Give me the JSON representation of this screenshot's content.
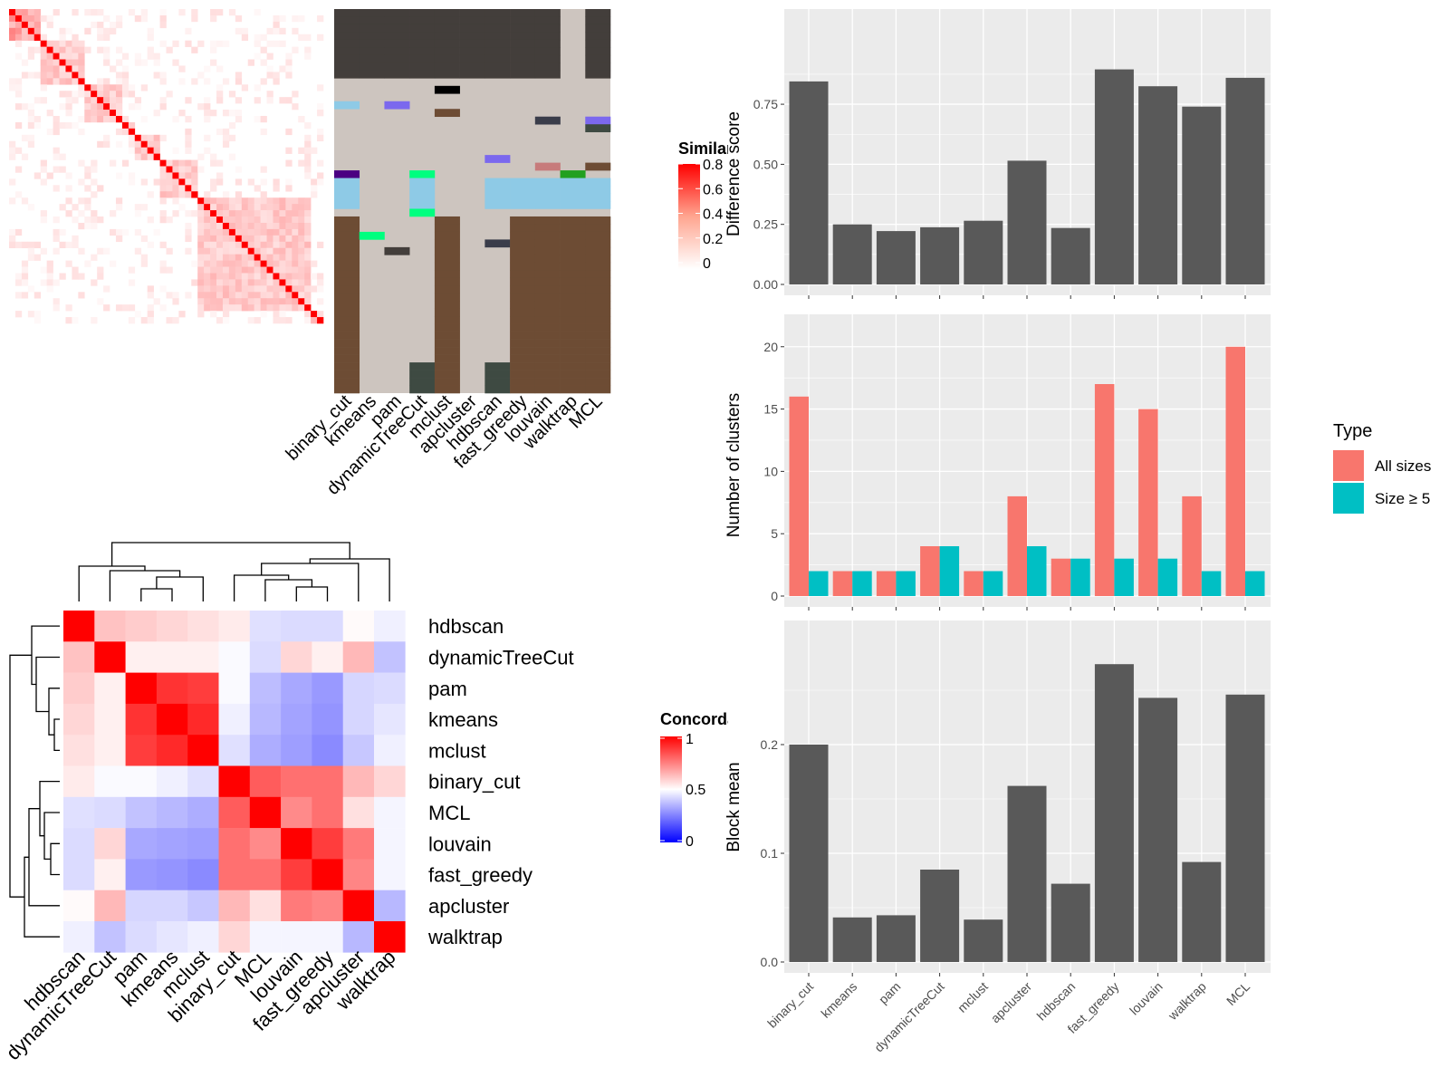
{
  "chart_data": [
    {
      "type": "heatmap",
      "panel": "similarity-heatmap",
      "legend_title": "Similarity",
      "legend_ticks": [
        "0",
        "0.2",
        "0.4",
        "0.6",
        "0.8"
      ],
      "column_labels": [
        "binary_cut",
        "kmeans",
        "pam",
        "dynamicTreeCut",
        "mclust",
        "apcluster",
        "hdbscan",
        "fast_greedy",
        "louvain",
        "walktrap",
        "MCL"
      ]
    },
    {
      "type": "heatmap",
      "panel": "concordance-heatmap",
      "legend_title": "Concordance",
      "legend_ticks": [
        "0",
        "0.5",
        "1"
      ],
      "row_labels": [
        "hdbscan",
        "dynamicTreeCut",
        "pam",
        "kmeans",
        "mclust",
        "binary_cut",
        "MCL",
        "louvain",
        "fast_greedy",
        "apcluster",
        "walktrap"
      ],
      "column_labels": [
        "hdbscan",
        "dynamicTreeCut",
        "pam",
        "kmeans",
        "mclust",
        "binary_cut",
        "MCL",
        "louvain",
        "fast_greedy",
        "apcluster",
        "walktrap"
      ],
      "values": [
        [
          1.0,
          0.62,
          0.6,
          0.58,
          0.56,
          0.54,
          0.44,
          0.43,
          0.43,
          0.51,
          0.47
        ],
        [
          0.62,
          1.0,
          0.53,
          0.53,
          0.53,
          0.49,
          0.43,
          0.58,
          0.53,
          0.64,
          0.38
        ],
        [
          0.6,
          0.53,
          1.0,
          0.9,
          0.88,
          0.49,
          0.37,
          0.33,
          0.3,
          0.42,
          0.43
        ],
        [
          0.58,
          0.53,
          0.9,
          1.0,
          0.92,
          0.47,
          0.36,
          0.32,
          0.29,
          0.42,
          0.45
        ],
        [
          0.56,
          0.53,
          0.88,
          0.92,
          1.0,
          0.44,
          0.34,
          0.31,
          0.27,
          0.39,
          0.47
        ],
        [
          0.54,
          0.49,
          0.49,
          0.47,
          0.44,
          1.0,
          0.82,
          0.78,
          0.78,
          0.64,
          0.58
        ],
        [
          0.44,
          0.43,
          0.38,
          0.36,
          0.34,
          0.82,
          1.0,
          0.73,
          0.78,
          0.56,
          0.48
        ],
        [
          0.43,
          0.58,
          0.33,
          0.32,
          0.31,
          0.78,
          0.73,
          1.0,
          0.88,
          0.76,
          0.48
        ],
        [
          0.43,
          0.53,
          0.3,
          0.29,
          0.27,
          0.78,
          0.78,
          0.88,
          1.0,
          0.74,
          0.48
        ],
        [
          0.51,
          0.64,
          0.42,
          0.42,
          0.39,
          0.64,
          0.56,
          0.76,
          0.74,
          1.0,
          0.36
        ],
        [
          0.47,
          0.38,
          0.43,
          0.45,
          0.47,
          0.58,
          0.48,
          0.48,
          0.48,
          0.36,
          1.0
        ]
      ]
    },
    {
      "type": "bar",
      "panel": "difference-score",
      "categories": [
        "binary_cut",
        "kmeans",
        "pam",
        "dynamicTreeCut",
        "mclust",
        "apcluster",
        "hdbscan",
        "fast_greedy",
        "louvain",
        "walktrap",
        "MCL"
      ],
      "values": [
        0.845,
        0.25,
        0.222,
        0.238,
        0.265,
        0.515,
        0.235,
        0.895,
        0.825,
        0.74,
        0.86
      ],
      "ylabel": "Difference score",
      "yticks": [
        "0.00",
        "0.25",
        "0.50",
        "0.75"
      ],
      "ylim": [
        0,
        0.92
      ],
      "grid": true
    },
    {
      "type": "bar",
      "panel": "number-of-clusters",
      "categories": [
        "binary_cut",
        "kmeans",
        "pam",
        "dynamicTreeCut",
        "mclust",
        "apcluster",
        "hdbscan",
        "fast_greedy",
        "louvain",
        "walktrap",
        "MCL"
      ],
      "series": [
        {
          "name": "All sizes",
          "color": "#F8766D",
          "values": [
            16,
            2,
            2,
            4,
            2,
            8,
            3,
            17,
            15,
            8,
            20
          ]
        },
        {
          "name": "Size ≥ 5",
          "color": "#00BFC4",
          "values": [
            2,
            2,
            2,
            4,
            2,
            4,
            3,
            3,
            3,
            2,
            2
          ]
        }
      ],
      "ylabel": "Number of clusters",
      "yticks": [
        "0",
        "5",
        "10",
        "15",
        "20"
      ],
      "ylim": [
        0,
        21
      ],
      "legend_title": "Type",
      "legend_position": "right",
      "grid": true
    },
    {
      "type": "bar",
      "panel": "block-mean",
      "categories": [
        "binary_cut",
        "kmeans",
        "pam",
        "dynamicTreeCut",
        "mclust",
        "apcluster",
        "hdbscan",
        "fast_greedy",
        "louvain",
        "walktrap",
        "MCL"
      ],
      "values": [
        0.2,
        0.041,
        0.043,
        0.085,
        0.039,
        0.162,
        0.072,
        0.274,
        0.243,
        0.092,
        0.246
      ],
      "ylabel": "Block mean",
      "yticks": [
        "0.0",
        "0.1",
        "0.2"
      ],
      "ylim": [
        0,
        0.285
      ],
      "grid": true
    }
  ]
}
